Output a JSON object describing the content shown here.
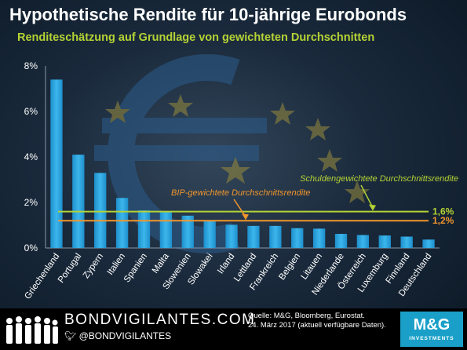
{
  "header": {
    "title": "Hypothetische Rendite für 10-jährige Eurobonds",
    "subtitle": "Renditeschätzung auf Grundlage von gewichteten Durchschnitten"
  },
  "chart_data": {
    "type": "bar",
    "categories": [
      "Griechenland",
      "Portugal",
      "Zypern",
      "Italien",
      "Spanien",
      "Malta",
      "Slowenien",
      "Slowakei",
      "Irland",
      "Lettland",
      "Frankreich",
      "Belgien",
      "Litauen",
      "Niederlande",
      "Österreich",
      "Luxemburg",
      "Finnland",
      "Deutschland"
    ],
    "values": [
      7.4,
      4.1,
      3.3,
      2.2,
      1.65,
      1.6,
      1.42,
      1.2,
      1.02,
      0.97,
      0.97,
      0.87,
      0.85,
      0.62,
      0.57,
      0.55,
      0.5,
      0.37
    ],
    "ylim": [
      0,
      8
    ],
    "yticks": [
      "0%",
      "2%",
      "4%",
      "6%",
      "8%"
    ],
    "reference_lines": [
      {
        "label": "Schuldengewichtete Durchschnittsrendite",
        "value": 1.6,
        "value_label": "1,6%",
        "color": "#b5d334"
      },
      {
        "label": "BIP-gewichtete Durchschnittsrendite",
        "value": 1.2,
        "value_label": "1,2%",
        "color": "#f0962d"
      }
    ],
    "bar_color": "#29a8e0",
    "grid": false
  },
  "footer": {
    "brand": "BONDVIGILANTES.COM",
    "handle": "@BONDVIGILANTES",
    "source_line1": "Quelle: M&G, Bloomberg, Eurostat.",
    "source_line2": "24. März 2017 (aktuell verfügbare Daten).",
    "logo_main": "M&G",
    "logo_sub": "INVESTMENTS"
  }
}
